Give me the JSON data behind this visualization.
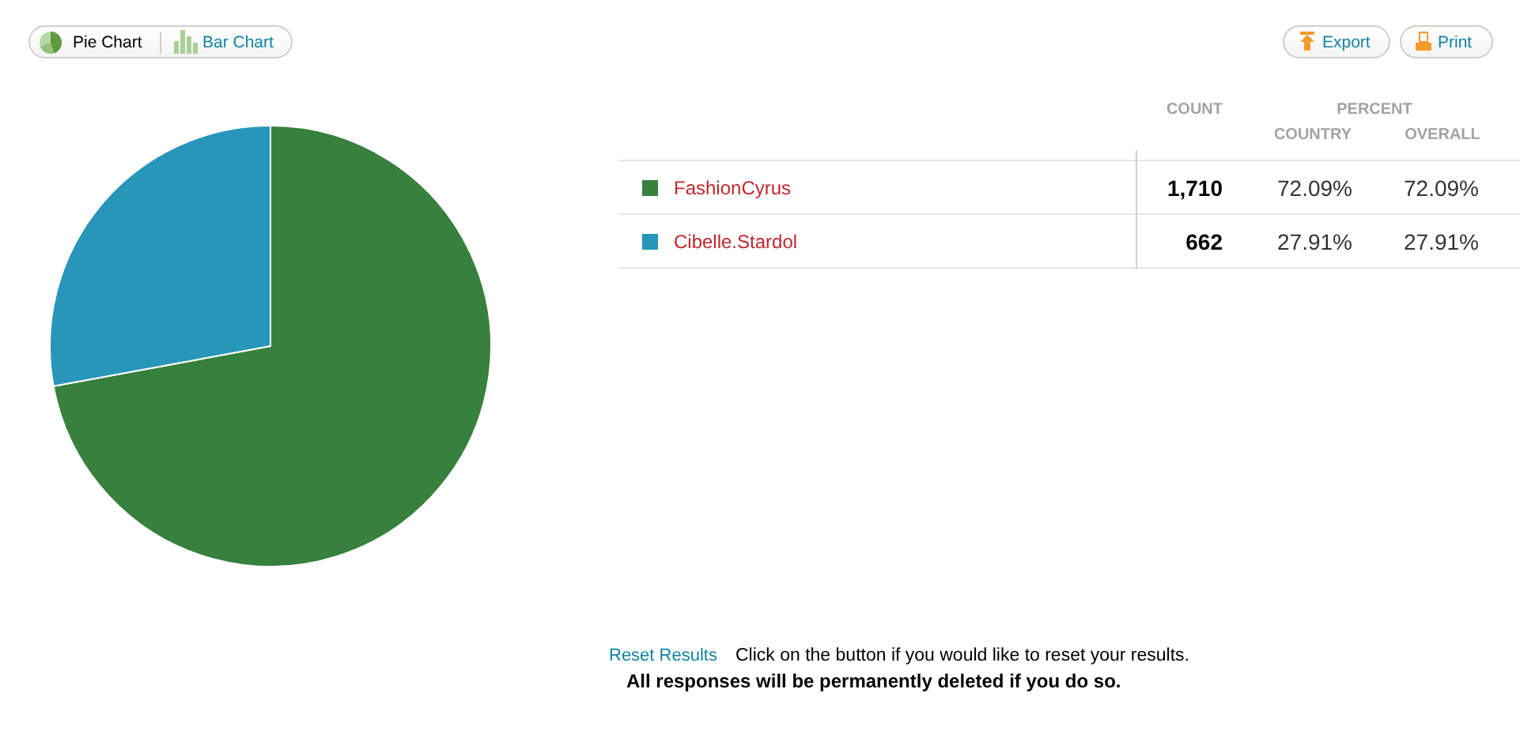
{
  "chart_data": {
    "type": "pie",
    "categories": [
      "FashionCyrus",
      "Cibelle.Stardol"
    ],
    "values": [
      1710,
      662
    ],
    "colors": [
      "#37803d",
      "#2796b8"
    ],
    "value_labels": [
      "1,710",
      "662"
    ],
    "legend": "right",
    "annotations": [
      "Pie Chart",
      "Bar Chart",
      "Export",
      "Print",
      "COUNT",
      "PERCENT",
      "COUNTRY",
      "OVERALL",
      "72.09%",
      "72.09%",
      "27.91%",
      "27.91%",
      "Reset Results",
      "Click on the button if you would like to reset your results.",
      "All responses will be permanently deleted if you do so."
    ]
  }
}
